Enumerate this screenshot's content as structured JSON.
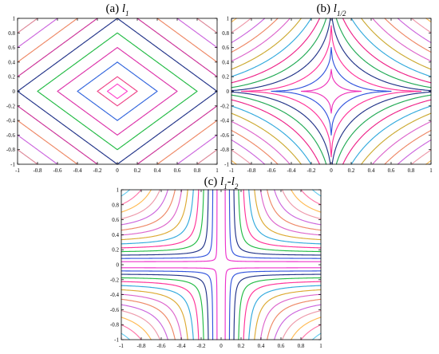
{
  "chart_data": [
    {
      "type": "line",
      "panel_label": "(a)",
      "title_base": "l",
      "title_sub": "1",
      "function": "l1_norm",
      "xlim": [
        -1,
        1
      ],
      "ylim": [
        -1,
        1
      ],
      "xticks": [
        -1,
        -0.8,
        -0.6,
        -0.4,
        -0.2,
        0,
        0.2,
        0.4,
        0.6,
        0.8,
        1
      ],
      "yticks": [
        -1,
        -0.8,
        -0.6,
        -0.4,
        -0.2,
        0,
        0.2,
        0.4,
        0.6,
        0.8,
        1
      ],
      "xtick_labels": [
        "-1",
        "-0.8",
        "-0.6",
        "-0.4",
        "-0.2",
        "0",
        "0.2",
        "0.4",
        "0.6",
        "0.8",
        "1"
      ],
      "ytick_labels": [
        "-1",
        "-0.8",
        "-0.6",
        "-0.4",
        "-0.2",
        "0",
        "0.2",
        "0.4",
        "0.6",
        "0.8",
        "1"
      ],
      "levels": [
        0.1,
        0.2,
        0.4,
        0.6,
        0.8,
        1.0,
        1.2,
        1.4,
        1.6,
        1.8
      ],
      "colors": [
        "#ff44cc",
        "#ee4488",
        "#3366dd",
        "#dd33aa",
        "#22bb44",
        "#223388",
        "#cc3399",
        "#ee8866",
        "#cc66dd",
        "#dd8899"
      ],
      "grid": false
    },
    {
      "type": "line",
      "panel_label": "(b)",
      "title_base": "l",
      "title_sub": "1/2",
      "function": "l_half_quasinorm",
      "xlim": [
        -1,
        1
      ],
      "ylim": [
        -1,
        1
      ],
      "xticks": [
        -1,
        -0.8,
        -0.6,
        -0.4,
        -0.2,
        0,
        0.2,
        0.4,
        0.6,
        0.8,
        1
      ],
      "yticks": [
        -1,
        -0.8,
        -0.6,
        -0.4,
        -0.2,
        0,
        0.2,
        0.4,
        0.6,
        0.8,
        1
      ],
      "xtick_labels": [
        "-1",
        "-0.8",
        "-0.6",
        "-0.4",
        "-0.2",
        "0",
        "0.2",
        "0.4",
        "0.6",
        "0.8",
        "1"
      ],
      "ytick_labels": [
        "-1",
        "-0.8",
        "-0.6",
        "-0.4",
        "-0.2",
        "0",
        "0.2",
        "0.4",
        "0.6",
        "0.8",
        "1"
      ],
      "levels": [
        0.15,
        0.3,
        0.45,
        0.6,
        0.75,
        0.9,
        1.05,
        1.2,
        1.35,
        1.5,
        1.65,
        1.8,
        1.95
      ],
      "colors": [
        "#ee33bb",
        "#3355dd",
        "#ff3399",
        "#223388",
        "#22aa55",
        "#ee2288",
        "#33aadd",
        "#ccaa33",
        "#dd66cc",
        "#ee8866",
        "#cc66dd",
        "#ee99aa",
        "#ffbb55"
      ],
      "grid": false
    },
    {
      "type": "line",
      "panel_label": "(c)",
      "title_base1": "l",
      "title_sub1": "1",
      "title_sep": "-",
      "title_base2": "l",
      "title_sub2": "2",
      "function": "l1_minus_l2",
      "xlim": [
        -1,
        1
      ],
      "ylim": [
        -1,
        1
      ],
      "xticks": [
        -1,
        -0.8,
        -0.6,
        -0.4,
        -0.2,
        0,
        0.2,
        0.4,
        0.6,
        0.8,
        1
      ],
      "yticks": [
        -1,
        -0.8,
        -0.6,
        -0.4,
        -0.2,
        0,
        0.2,
        0.4,
        0.6,
        0.8,
        1
      ],
      "xtick_labels": [
        "-1",
        "-0.8",
        "-0.6",
        "-0.4",
        "-0.2",
        "0",
        "0.2",
        "0.4",
        "0.6",
        "0.8",
        "1"
      ],
      "ytick_labels": [
        "-1",
        "-0.8",
        "-0.6",
        "-0.4",
        "-0.2",
        "0",
        "0.2",
        "0.4",
        "0.6",
        "0.8",
        "1"
      ],
      "levels": [
        0.04,
        0.08,
        0.12,
        0.16,
        0.2,
        0.24,
        0.28,
        0.32,
        0.36,
        0.4,
        0.44,
        0.48,
        0.52,
        0.56
      ],
      "colors": [
        "#ee33cc",
        "#3355dd",
        "#223388",
        "#22bb44",
        "#ff3399",
        "#33aadd",
        "#ddaa33",
        "#dd66cc",
        "#ee8866",
        "#cc66dd",
        "#ee99aa",
        "#ffbb55",
        "#ff77aa",
        "#66ccee"
      ],
      "grid": false
    }
  ]
}
